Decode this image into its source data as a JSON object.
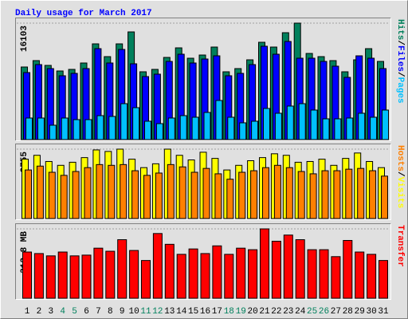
{
  "chart_data": [
    {
      "type": "bar",
      "title": "Daily usage for March 2017",
      "legend_separator": "/",
      "legend_reverse": false,
      "ylim": [
        0,
        16103
      ],
      "yticks": [
        16103
      ],
      "series": [
        {
          "name": "Hits",
          "color": "#00805c",
          "values": [
            10037,
            10920,
            10258,
            9486,
            9706,
            10589,
            13236,
            11471,
            13236,
            14890,
            9375,
            9706,
            11361,
            12684,
            11250,
            11691,
            12794,
            9375,
            9816,
            11030,
            13456,
            12794,
            14779,
            16103,
            11912,
            11471,
            10920,
            9375,
            11030,
            12574,
            10809
          ]
        },
        {
          "name": "Files",
          "color": "#0000ff",
          "values": [
            9265,
            10368,
            9817,
            8824,
            9155,
            9817,
            12574,
            10589,
            12464,
            10479,
            8714,
            9045,
            10809,
            11802,
            10589,
            11140,
            11582,
            8824,
            9155,
            10368,
            12905,
            11802,
            13567,
            11251,
            11251,
            10809,
            10148,
            8603,
            11582,
            11251,
            9817
          ]
        },
        {
          "name": "Pages",
          "color": "#00c0ff",
          "values": [
            2978,
            2978,
            1985,
            2978,
            2758,
            2758,
            3309,
            3199,
            4964,
            4412,
            2537,
            2206,
            2978,
            3309,
            3088,
            3750,
            5405,
            3088,
            2316,
            2537,
            4302,
            3640,
            4633,
            4964,
            4081,
            2868,
            2868,
            2978,
            3640,
            3088,
            4081
          ]
        }
      ]
    },
    {
      "type": "bar",
      "legend_separator": "/",
      "legend_reverse": true,
      "ylim": [
        0,
        3755
      ],
      "yticks": [
        3755
      ],
      "series": [
        {
          "name": "Visits",
          "color": "#ffff00",
          "values": [
            3212,
            3421,
            3087,
            2879,
            3046,
            3296,
            3713,
            3630,
            3755,
            3212,
            2754,
            2962,
            3755,
            3421,
            3171,
            3588,
            3254,
            2628,
            2879,
            3129,
            3296,
            3504,
            3421,
            3046,
            3087,
            3212,
            2879,
            3254,
            3546,
            3087,
            2754
          ]
        },
        {
          "name": "Hosts",
          "color": "#ff8000",
          "values": [
            2628,
            2837,
            2503,
            2336,
            2545,
            2754,
            2920,
            2879,
            2920,
            2587,
            2336,
            2461,
            2920,
            2795,
            2503,
            2712,
            2420,
            2128,
            2503,
            2587,
            2754,
            2879,
            2754,
            2545,
            2420,
            2587,
            2587,
            2670,
            2712,
            2587,
            2295
          ]
        }
      ]
    },
    {
      "type": "bar",
      "legend_reverse": false,
      "ylim": [
        0,
        312.8
      ],
      "yticks": [
        {
          "value": 312.8,
          "label": "312.8 MB"
        }
      ],
      "categories": [
        "1",
        "2",
        "3",
        "4",
        "5",
        "6",
        "7",
        "8",
        "9",
        "10",
        "11",
        "12",
        "13",
        "14",
        "15",
        "16",
        "17",
        "18",
        "19",
        "20",
        "21",
        "22",
        "23",
        "24",
        "25",
        "26",
        "27",
        "28",
        "29",
        "30",
        "31"
      ],
      "category_colors": [
        "#000000",
        "#000000",
        "#000000",
        "#00805c",
        "#00805c",
        "#000000",
        "#000000",
        "#000000",
        "#000000",
        "#000000",
        "#00805c",
        "#00805c",
        "#000000",
        "#000000",
        "#000000",
        "#000000",
        "#000000",
        "#00805c",
        "#00805c",
        "#000000",
        "#000000",
        "#000000",
        "#000000",
        "#000000",
        "#00805c",
        "#00805c",
        "#000000",
        "#000000",
        "#000000",
        "#000000",
        "#000000"
      ],
      "series": [
        {
          "name": "Transfer",
          "color": "#ff0000",
          "values": [
            208.5,
            201.6,
            191.2,
            208.5,
            191.2,
            194.6,
            225.9,
            212.0,
            264.1,
            215.5,
            170.3,
            291.9,
            243.3,
            198.1,
            222.4,
            201.6,
            236.3,
            198.1,
            225.9,
            219.0,
            312.8,
            257.2,
            285.0,
            264.1,
            219.0,
            219.0,
            187.7,
            260.7,
            208.5,
            198.1,
            170.3
          ]
        }
      ]
    }
  ]
}
